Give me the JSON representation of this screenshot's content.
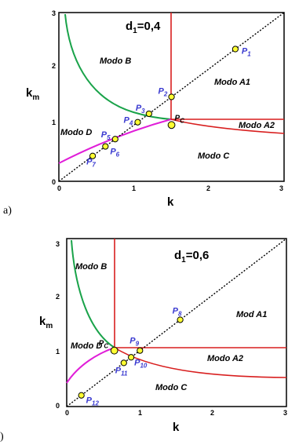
{
  "panels": [
    {
      "panel_label": "a)",
      "title_main": "d",
      "title_sub": "1",
      "title_value": "=0,4",
      "xlabel": "k",
      "ylabel_main": "k",
      "ylabel_sub": "m",
      "xticks": [
        "0",
        "1",
        "2",
        "3"
      ],
      "yticks": [
        "0",
        "1",
        "2",
        "3"
      ],
      "modes": [
        "Modo B",
        "Modo A1",
        "Modo A2",
        "Modo C",
        "Modo D"
      ],
      "pc_label": "P",
      "pc_sub": "C",
      "points": [
        {
          "label": "P",
          "sub": "1",
          "x": 2.35,
          "y": 2.35
        },
        {
          "label": "P",
          "sub": "2",
          "x": 1.5,
          "y": 1.5
        },
        {
          "label": "P",
          "sub": "3",
          "x": 1.2,
          "y": 1.2
        },
        {
          "label": "P",
          "sub": "4",
          "x": 1.05,
          "y": 1.05
        },
        {
          "label": "P",
          "sub": "5",
          "x": 0.75,
          "y": 0.75
        },
        {
          "label": "P",
          "sub": "6",
          "x": 0.62,
          "y": 0.62
        },
        {
          "label": "P",
          "sub": "7",
          "x": 0.45,
          "y": 0.45
        }
      ],
      "pc": {
        "x": 1.5,
        "y": 1.0
      }
    },
    {
      "panel_label": ")",
      "title_main": "d",
      "title_sub": "1",
      "title_value": "=0,6",
      "xlabel": "k",
      "ylabel_main": "k",
      "ylabel_sub": "m",
      "xticks": [
        "0",
        "1",
        "2",
        "3"
      ],
      "yticks": [
        "0",
        "1",
        "2",
        "3"
      ],
      "modes": [
        "Modo B",
        "Mod A1",
        "Modo A2",
        "Modo C",
        "Modo D"
      ],
      "pc_label": "P",
      "pc_sub": "C",
      "points": [
        {
          "label": "P",
          "sub": "8",
          "x": 1.55,
          "y": 1.55
        },
        {
          "label": "P",
          "sub": "9",
          "x": 1.0,
          "y": 1.0
        },
        {
          "label": "P",
          "sub": "10",
          "x": 0.88,
          "y": 0.88
        },
        {
          "label": "P",
          "sub": "11",
          "x": 0.78,
          "y": 0.78
        },
        {
          "label": "P",
          "sub": "12",
          "x": 0.2,
          "y": 0.2
        }
      ],
      "pc": {
        "x": 0.65,
        "y": 1.0
      }
    }
  ],
  "colors": {
    "green_curve": "#1aa34a",
    "red_curve": "#d81e1e",
    "magenta_curve": "#e01ed8",
    "point_fill": "#ffff33",
    "label_blue": "#3a3ad0"
  }
}
